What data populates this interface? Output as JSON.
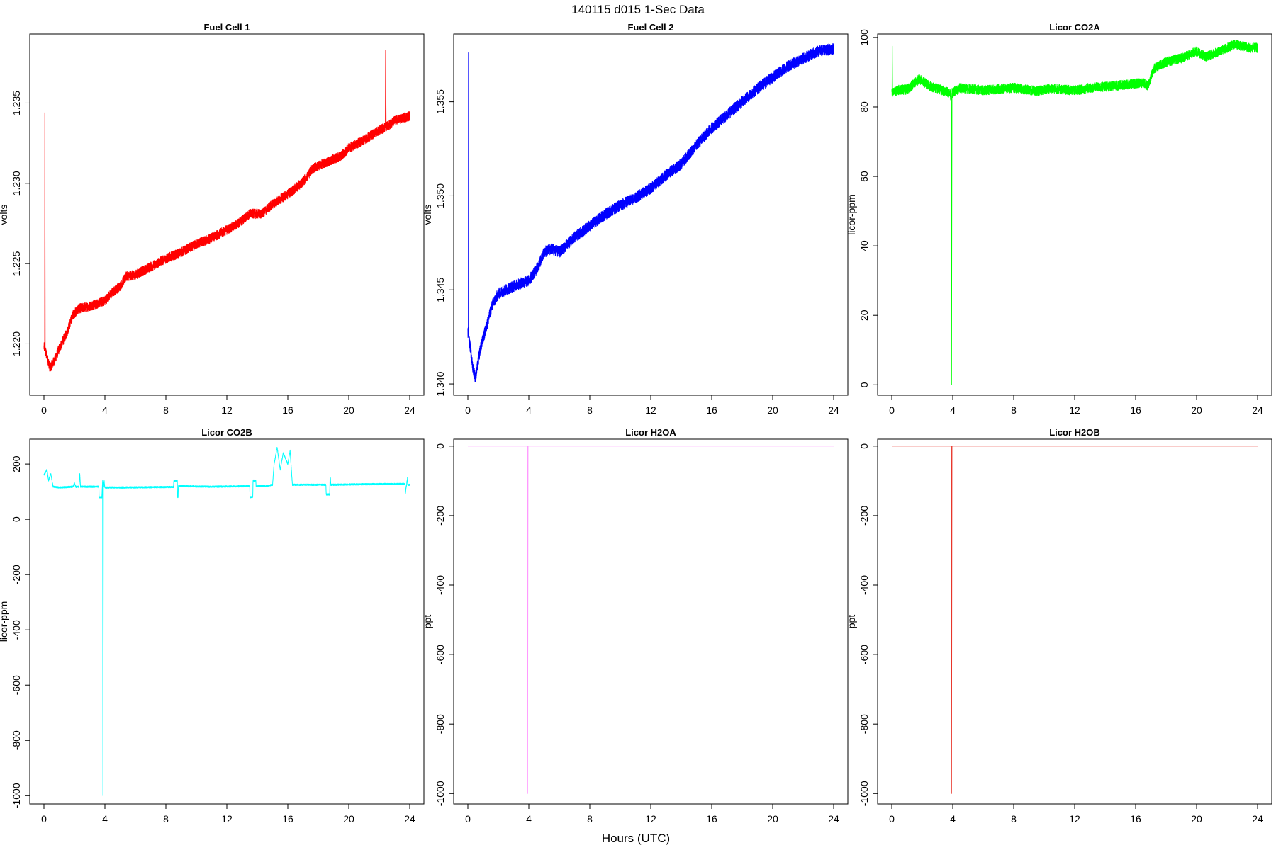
{
  "figure": {
    "title": "140115   d015   1-Sec Data",
    "xlabel": "Hours (UTC)"
  },
  "chart_data": [
    {
      "type": "line",
      "title": "Fuel Cell 1",
      "xlabel": "",
      "ylabel": "volts",
      "color": "#ff0000",
      "xlim": [
        0,
        24
      ],
      "ylim": [
        1.2168,
        1.2393
      ],
      "xticks": [
        0,
        4,
        8,
        12,
        16,
        20,
        24
      ],
      "yticks": [
        1.22,
        1.225,
        1.23,
        1.235
      ],
      "ytick_labels": [
        "1.220",
        "1.225",
        "1.230",
        "1.235"
      ],
      "noise": 0.0003,
      "series": [
        {
          "x": [
            0,
            0.05,
            0.06,
            0.08,
            0.2,
            0.4,
            0.7,
            1.0,
            1.5,
            1.9,
            2.3,
            2.8,
            3.5,
            4.0,
            4.5,
            5.0,
            5.4,
            6.0,
            7.0,
            8.0,
            9.0,
            10.0,
            11.0,
            12.0,
            12.6,
            13.0,
            13.5,
            14.3,
            15.0,
            15.8,
            16.4,
            17.0,
            17.6,
            18.5,
            19.5,
            20.0,
            21.0,
            22.0,
            22.4,
            22.42,
            22.45,
            23.0,
            24.0
          ],
          "y": [
            1.2198,
            1.2197,
            1.2344,
            1.2196,
            1.2192,
            1.2185,
            1.219,
            1.2197,
            1.2207,
            1.2218,
            1.2222,
            1.2223,
            1.2225,
            1.2227,
            1.2232,
            1.2236,
            1.2242,
            1.2243,
            1.2248,
            1.2253,
            1.2257,
            1.2262,
            1.2266,
            1.2271,
            1.2274,
            1.2277,
            1.2281,
            1.2281,
            1.2287,
            1.2292,
            1.2296,
            1.2301,
            1.2309,
            1.2313,
            1.2317,
            1.2322,
            1.2327,
            1.2333,
            1.2335,
            1.2383,
            1.2335,
            1.2339,
            1.2342
          ]
        }
      ]
    },
    {
      "type": "line",
      "title": "Fuel Cell 2",
      "xlabel": "",
      "ylabel": "volts",
      "color": "#0000ff",
      "xlim": [
        0,
        24
      ],
      "ylim": [
        1.3394,
        1.3586
      ],
      "xticks": [
        0,
        4,
        8,
        12,
        16,
        20,
        24
      ],
      "yticks": [
        1.34,
        1.345,
        1.35,
        1.355
      ],
      "ytick_labels": [
        "1.340",
        "1.345",
        "1.350",
        "1.355"
      ],
      "noise": 0.0003,
      "series": [
        {
          "x": [
            0,
            0.03,
            0.04,
            0.06,
            0.15,
            0.3,
            0.5,
            0.8,
            1.2,
            1.6,
            2.0,
            2.5,
            3.0,
            4.0,
            4.6,
            5.0,
            5.5,
            6.0,
            7.0,
            8.0,
            9.0,
            10.0,
            11.0,
            12.0,
            13.0,
            14.0,
            15.0,
            16.0,
            17.0,
            18.0,
            19.0,
            20.0,
            21.0,
            22.0,
            23.0,
            24.0
          ],
          "y": [
            1.3427,
            1.3428,
            1.3576,
            1.3425,
            1.342,
            1.341,
            1.3403,
            1.3418,
            1.343,
            1.3442,
            1.3448,
            1.345,
            1.3452,
            1.3455,
            1.3462,
            1.347,
            1.3472,
            1.347,
            1.3478,
            1.3484,
            1.349,
            1.3495,
            1.3499,
            1.3504,
            1.3511,
            1.3517,
            1.3527,
            1.3536,
            1.3543,
            1.355,
            1.3557,
            1.3563,
            1.3569,
            1.3573,
            1.3577,
            1.3578
          ]
        }
      ]
    },
    {
      "type": "line",
      "title": "Licor CO2A",
      "xlabel": "",
      "ylabel": "licor-ppm",
      "color": "#00ff00",
      "xlim": [
        0,
        24
      ],
      "ylim": [
        -3,
        101
      ],
      "xticks": [
        0,
        4,
        8,
        12,
        16,
        20,
        24
      ],
      "yticks": [
        0,
        20,
        40,
        60,
        80,
        100
      ],
      "ytick_labels": [
        "0",
        "20",
        "40",
        "60",
        "80",
        "100"
      ],
      "noise": 1.4,
      "series": [
        {
          "x": [
            0,
            0.02,
            0.03,
            0.05,
            0.5,
            1.0,
            1.8,
            2.5,
            3.2,
            3.8,
            3.9,
            3.92,
            3.95,
            4.5,
            6.0,
            8.0,
            9.5,
            10.5,
            12.0,
            13.0,
            14.5,
            15.5,
            16.5,
            16.8,
            17.2,
            18.0,
            19.0,
            20.0,
            20.6,
            21.5,
            22.5,
            23.5,
            24.0
          ],
          "y": [
            84,
            84,
            97,
            84,
            85,
            85,
            88,
            86,
            85,
            84,
            83,
            0,
            84,
            85.5,
            84.8,
            85.5,
            84.6,
            85.3,
            84.7,
            85.5,
            86,
            86.5,
            87,
            86,
            91,
            93,
            94,
            96,
            94.5,
            96,
            98,
            97,
            97
          ]
        }
      ]
    },
    {
      "type": "line",
      "title": "Licor CO2B",
      "xlabel": "",
      "ylabel": "licor-ppm",
      "color": "#00ffff",
      "xlim": [
        0,
        24
      ],
      "ylim": [
        -1030,
        290
      ],
      "xticks": [
        0,
        4,
        8,
        12,
        16,
        20,
        24
      ],
      "yticks": [
        -1000,
        -800,
        -600,
        -400,
        -200,
        0,
        200
      ],
      "ytick_labels": [
        "-1000",
        "-800",
        "-600",
        "-400",
        "-200",
        "0",
        "200"
      ],
      "noise": 3,
      "series": [
        {
          "x": [
            0,
            0.2,
            0.3,
            0.45,
            0.6,
            1.0,
            1.9,
            2.0,
            2.1,
            2.3,
            2.35,
            2.4,
            3.6,
            3.62,
            3.8,
            3.85,
            3.87,
            3.9,
            3.92,
            3.95,
            3.98,
            4.0,
            5.0,
            8.5,
            8.52,
            8.75,
            8.77,
            8.8,
            8.82,
            9.0,
            11.0,
            13.5,
            13.52,
            13.7,
            13.72,
            13.9,
            13.92,
            14.5,
            15.0,
            15.1,
            15.3,
            15.5,
            15.7,
            16.0,
            16.15,
            16.3,
            18.5,
            18.52,
            18.75,
            18.77,
            18.8,
            18.82,
            19.0,
            21.0,
            23.7,
            23.72,
            23.85,
            23.87,
            24.0
          ],
          "y": [
            160,
            180,
            140,
            165,
            118,
            115,
            118,
            130,
            117,
            118,
            165,
            118,
            118,
            80,
            80,
            140,
            -1000,
            135,
            118,
            140,
            120,
            115,
            115,
            117,
            140,
            140,
            80,
            80,
            120,
            120,
            118,
            120,
            80,
            80,
            140,
            140,
            120,
            120,
            125,
            200,
            260,
            180,
            240,
            200,
            250,
            125,
            125,
            90,
            90,
            150,
            150,
            125,
            125,
            127,
            128,
            95,
            150,
            125,
            125
          ]
        }
      ]
    },
    {
      "type": "line",
      "title": "Licor H2OA",
      "xlabel": "",
      "ylabel": "ppt",
      "color": "#ff99ff",
      "xlim": [
        0,
        24
      ],
      "ylim": [
        -1030,
        20
      ],
      "xticks": [
        0,
        4,
        8,
        12,
        16,
        20,
        24
      ],
      "yticks": [
        -1000,
        -800,
        -600,
        -400,
        -200,
        0
      ],
      "ytick_labels": [
        "-1000",
        "-800",
        "-600",
        "-400",
        "-200",
        "0"
      ],
      "noise": 0,
      "series": [
        {
          "x": [
            0,
            3.9,
            3.92,
            3.95,
            24.0
          ],
          "y": [
            0,
            0,
            -1000,
            0,
            0
          ]
        }
      ]
    },
    {
      "type": "line",
      "title": "Licor H2OB",
      "xlabel": "",
      "ylabel": "ppt",
      "color": "#e8352a",
      "xlim": [
        0,
        24
      ],
      "ylim": [
        -1030,
        20
      ],
      "xticks": [
        0,
        4,
        8,
        12,
        16,
        20,
        24
      ],
      "yticks": [
        -1000,
        -800,
        -600,
        -400,
        -200,
        0
      ],
      "ytick_labels": [
        "-1000",
        "-800",
        "-600",
        "-400",
        "-200",
        "0"
      ],
      "noise": 0,
      "series": [
        {
          "x": [
            0,
            3.9,
            3.92,
            3.95,
            24.0
          ],
          "y": [
            0,
            0,
            -1000,
            0,
            0
          ]
        }
      ]
    }
  ]
}
